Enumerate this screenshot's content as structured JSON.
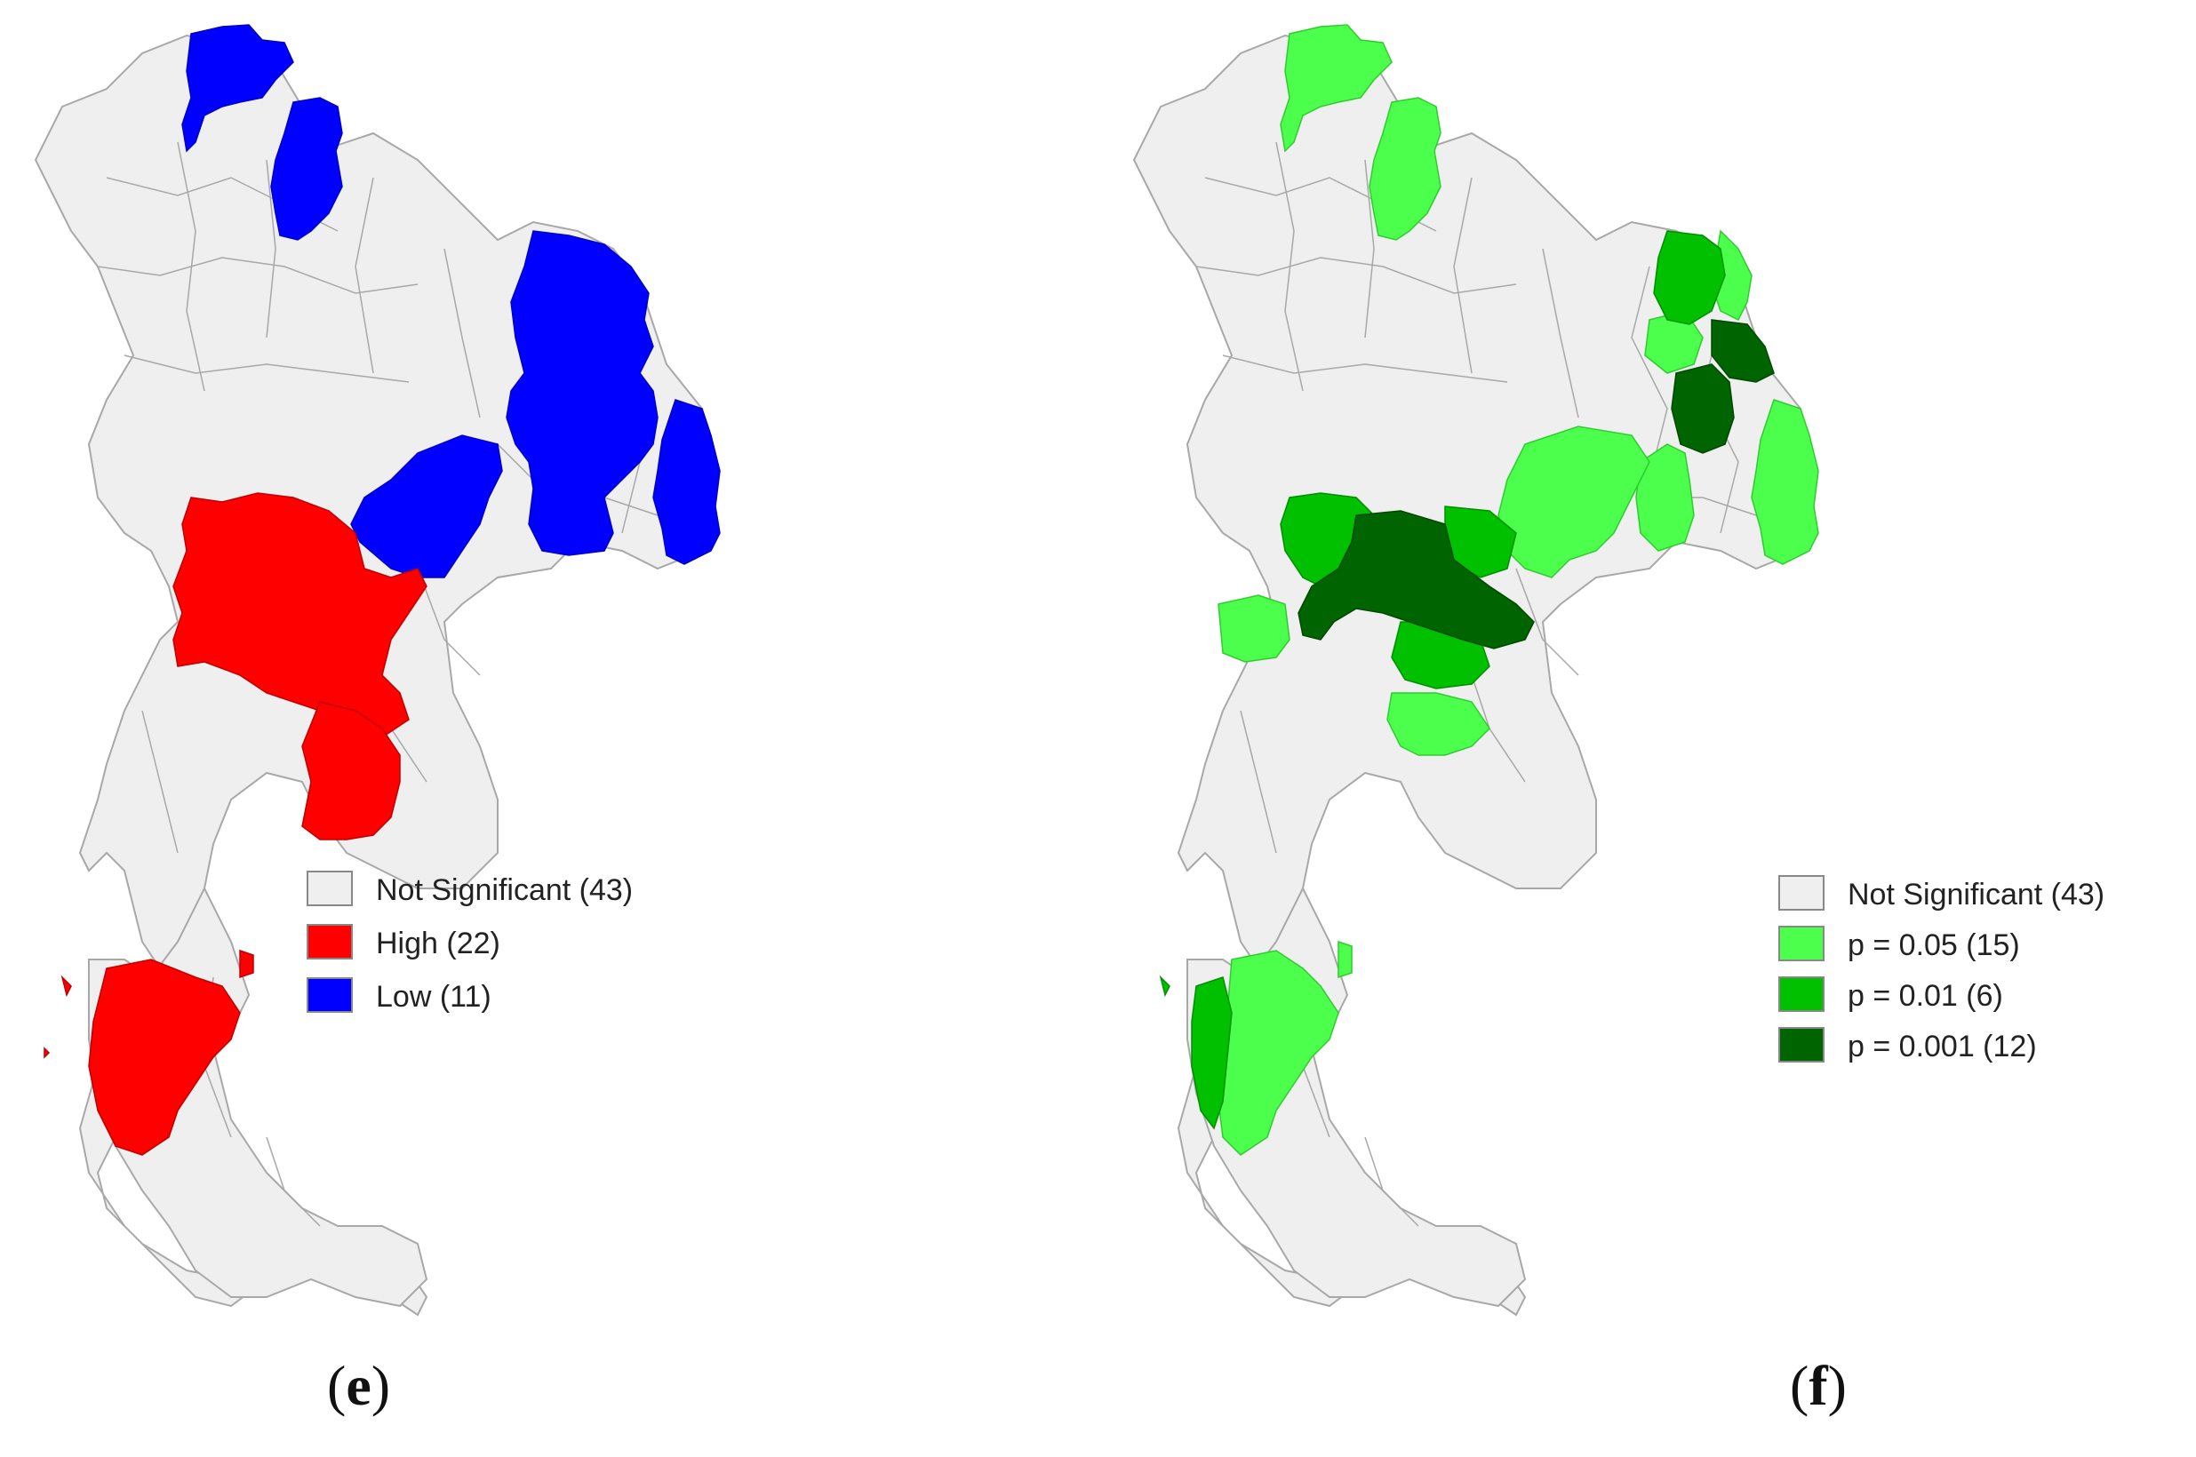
{
  "panels": [
    {
      "id": "e",
      "caption_open": "(",
      "caption_letter": "e",
      "caption_close": ")",
      "legend": [
        {
          "label": "Not Significant (43)",
          "color": "#efefef"
        },
        {
          "label": "High (22)",
          "color": "#ff0000"
        },
        {
          "label": "Low (11)",
          "color": "#0000ff"
        }
      ]
    },
    {
      "id": "f",
      "caption_open": "(",
      "caption_letter": "f",
      "caption_close": ")",
      "legend": [
        {
          "label": "Not Significant (43)",
          "color": "#efefef"
        },
        {
          "label": "p = 0.05 (15)",
          "color": "#4dff4d"
        },
        {
          "label": "p = 0.01 (6)",
          "color": "#00c000"
        },
        {
          "label": "p = 0.001 (12)",
          "color": "#006400"
        }
      ]
    }
  ],
  "map_colors": {
    "base_fill": "#efefef",
    "border": "#a8a8a8"
  }
}
